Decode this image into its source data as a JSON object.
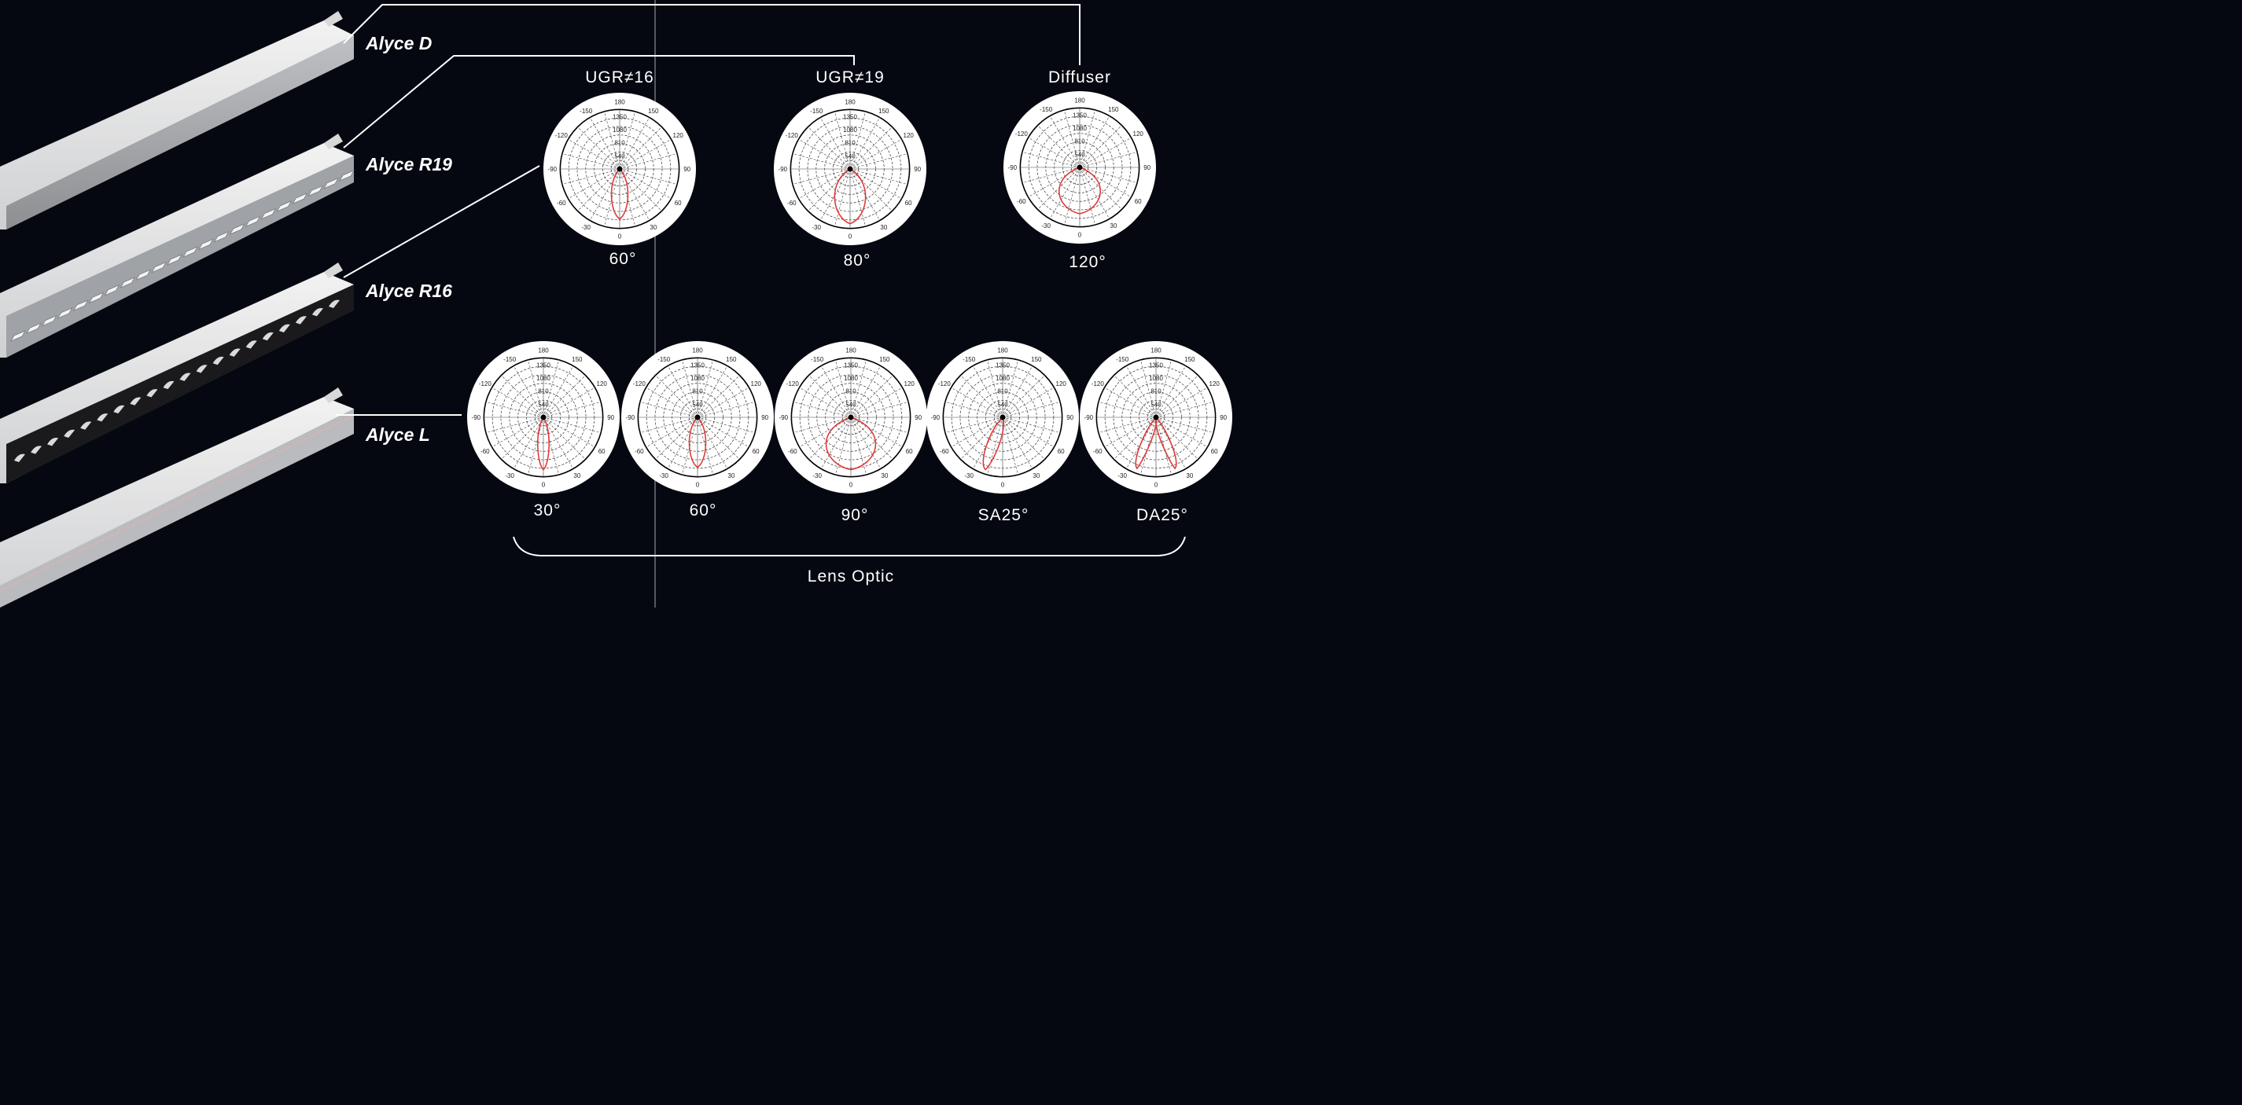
{
  "products": [
    {
      "id": "d",
      "name": "Alyce D"
    },
    {
      "id": "r19",
      "name": "Alyce R19"
    },
    {
      "id": "r16",
      "name": "Alyce R16"
    },
    {
      "id": "l",
      "name": "Alyce L"
    }
  ],
  "optic_headers": [
    "UGR≠16",
    "UGR≠19",
    "Diffuser"
  ],
  "group_label": "Lens Optic",
  "polar_axis": {
    "angle_labels": [
      "180",
      "-150",
      "150",
      "-120",
      "120",
      "-90",
      "90",
      "-60",
      "60",
      "-30",
      "30",
      "0"
    ],
    "radial_labels": [
      "1350",
      "1080",
      "810",
      "540"
    ]
  },
  "charts": [
    {
      "id": "ugr16",
      "beam": "60°",
      "curve": "narrow"
    },
    {
      "id": "ugr19",
      "beam": "80°",
      "curve": "medium"
    },
    {
      "id": "diffuser",
      "beam": "120°",
      "curve": "wide"
    },
    {
      "id": "lens30",
      "beam": "30°",
      "curve": "slim"
    },
    {
      "id": "lens60",
      "beam": "60°",
      "curve": "narrow"
    },
    {
      "id": "lens90",
      "beam": "90°",
      "curve": "broad"
    },
    {
      "id": "sa25",
      "beam": "SA25°",
      "curve": "asym"
    },
    {
      "id": "da25",
      "beam": "DA25°",
      "curve": "double"
    }
  ],
  "colors": {
    "background": "#050810",
    "curve": "#e03a3a",
    "line": "#ffffff"
  }
}
